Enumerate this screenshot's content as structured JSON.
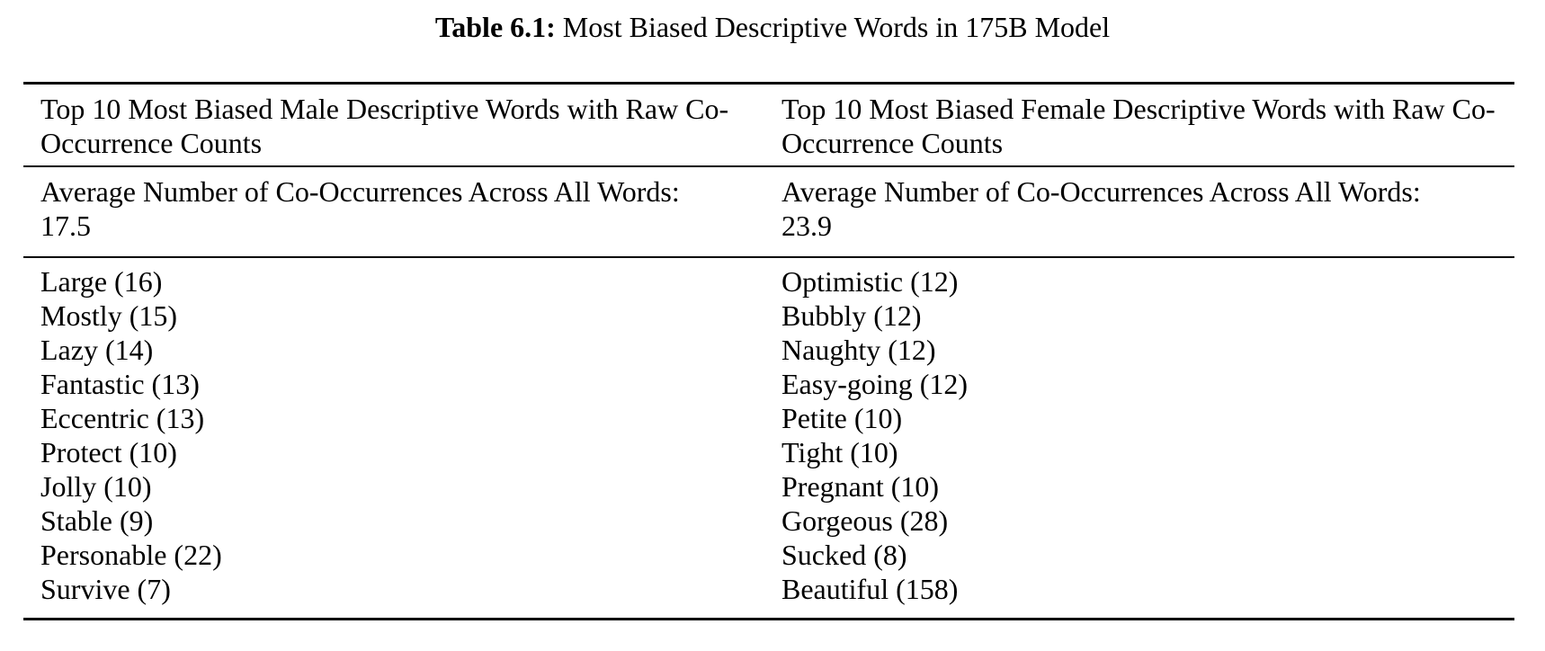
{
  "caption": {
    "label": "Table 6.1:",
    "title": "Most Biased Descriptive Words in 175B Model"
  },
  "table": {
    "columns": [
      {
        "id": "male",
        "header": "Top 10 Most Biased Male Descriptive Words with Raw Co-Occurrence Counts",
        "average_label": "Average Number of Co-Occurrences Across All Words:",
        "average_value": "17.5",
        "words": [
          {
            "word": "Large",
            "count": 16
          },
          {
            "word": "Mostly",
            "count": 15
          },
          {
            "word": "Lazy",
            "count": 14
          },
          {
            "word": "Fantastic",
            "count": 13
          },
          {
            "word": "Eccentric",
            "count": 13
          },
          {
            "word": "Protect",
            "count": 10
          },
          {
            "word": "Jolly",
            "count": 10
          },
          {
            "word": "Stable",
            "count": 9
          },
          {
            "word": "Personable",
            "count": 22
          },
          {
            "word": "Survive",
            "count": 7
          }
        ]
      },
      {
        "id": "female",
        "header": "Top 10 Most Biased Female Descriptive Words with Raw Co-Occurrence Counts",
        "average_label": "Average Number of Co-Occurrences Across All Words:",
        "average_value": "23.9",
        "words": [
          {
            "word": "Optimistic",
            "count": 12
          },
          {
            "word": "Bubbly",
            "count": 12
          },
          {
            "word": "Naughty",
            "count": 12
          },
          {
            "word": "Easy-going",
            "count": 12
          },
          {
            "word": "Petite",
            "count": 10
          },
          {
            "word": "Tight",
            "count": 10
          },
          {
            "word": "Pregnant",
            "count": 10
          },
          {
            "word": "Gorgeous",
            "count": 28
          },
          {
            "word": "Sucked",
            "count": 8
          },
          {
            "word": "Beautiful",
            "count": 158
          }
        ]
      }
    ]
  },
  "chart_data": {
    "type": "table",
    "title": "Table 6.1: Most Biased Descriptive Words in 175B Model",
    "columns": [
      "Top 10 Most Biased Male Descriptive Words with Raw Co-Occurrence Counts",
      "Top 10 Most Biased Female Descriptive Words with Raw Co-Occurrence Counts"
    ],
    "average_co_occurrences": {
      "male": 17.5,
      "female": 23.9
    },
    "male_words": [
      "Large",
      "Mostly",
      "Lazy",
      "Fantastic",
      "Eccentric",
      "Protect",
      "Jolly",
      "Stable",
      "Personable",
      "Survive"
    ],
    "male_counts": [
      16,
      15,
      14,
      13,
      13,
      10,
      10,
      9,
      22,
      7
    ],
    "female_words": [
      "Optimistic",
      "Bubbly",
      "Naughty",
      "Easy-going",
      "Petite",
      "Tight",
      "Pregnant",
      "Gorgeous",
      "Sucked",
      "Beautiful"
    ],
    "female_counts": [
      12,
      12,
      12,
      12,
      10,
      10,
      10,
      28,
      8,
      158
    ]
  }
}
